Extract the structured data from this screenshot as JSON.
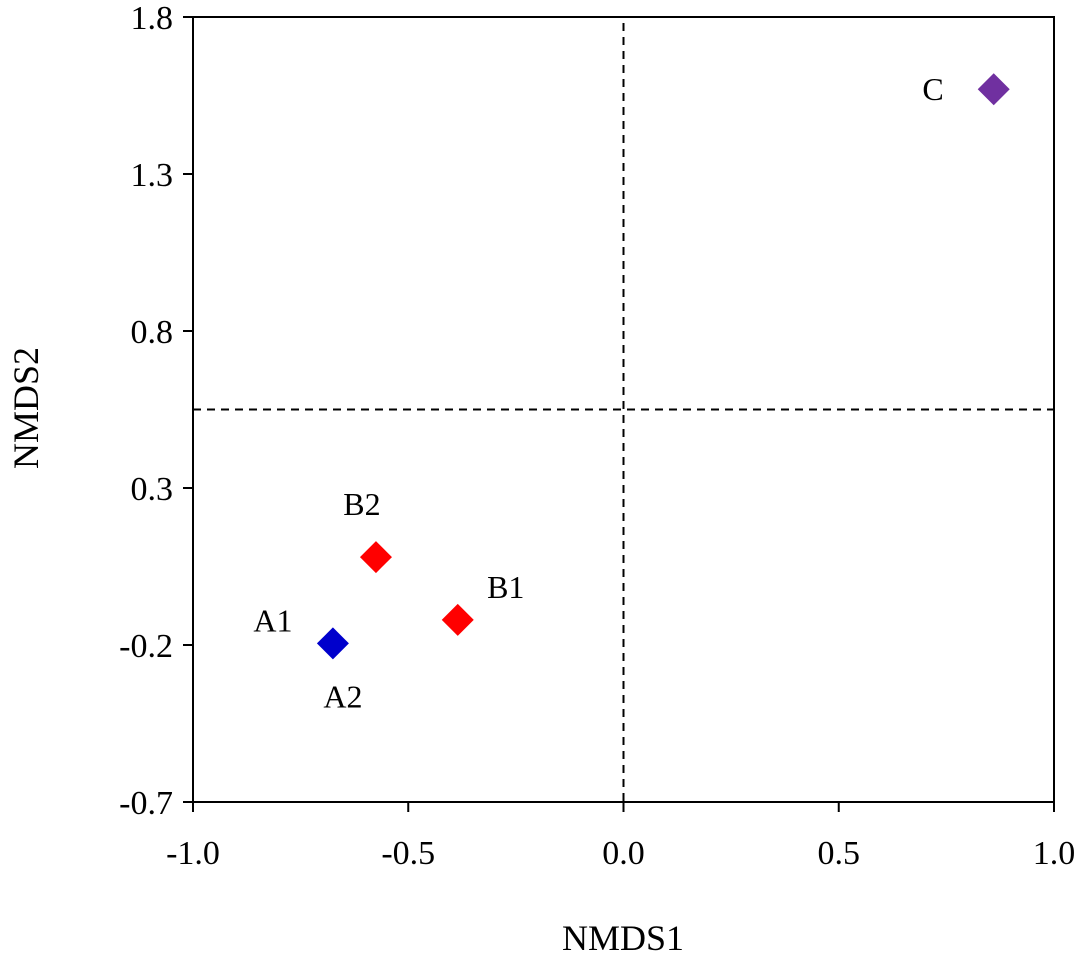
{
  "chart_data": {
    "type": "scatter",
    "title": "",
    "xlabel": "NMDS1",
    "ylabel": "NMDS2",
    "xlim": [
      -1.0,
      1.0
    ],
    "ylim": [
      -0.7,
      1.8
    ],
    "xticks": [
      -1.0,
      -0.5,
      0.0,
      0.5,
      1.0
    ],
    "xtick_labels": [
      "-1.0",
      "-0.5",
      "0.0",
      "0.5",
      "1.0"
    ],
    "yticks": [
      -0.7,
      -0.2,
      0.3,
      0.8,
      1.3,
      1.8
    ],
    "ytick_labels": [
      "-0.7",
      "-0.2",
      "0.3",
      "0.8",
      "1.3",
      "1.8"
    ],
    "grid": false,
    "reference_lines": {
      "x": 0.0,
      "y": 0.55,
      "style": "dashed"
    },
    "marker": "diamond",
    "points": [
      {
        "label": "A1",
        "x": -0.675,
        "y": -0.195,
        "color": "#0000cc"
      },
      {
        "label": "A2",
        "x": -0.675,
        "y": -0.195,
        "color": "#0000cc"
      },
      {
        "label": "B1",
        "x": -0.385,
        "y": -0.12,
        "color": "#ff0000"
      },
      {
        "label": "B2",
        "x": -0.575,
        "y": 0.08,
        "color": "#ff0000"
      },
      {
        "label": "C",
        "x": 0.86,
        "y": 1.57,
        "color": "#7030a0"
      }
    ]
  }
}
